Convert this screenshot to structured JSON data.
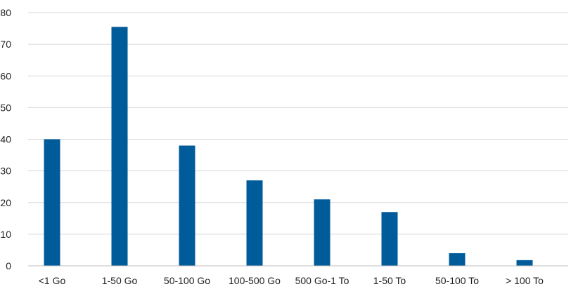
{
  "chart_data": {
    "type": "bar",
    "categories": [
      "<1 Go",
      "1-50 Go",
      "50-100 Go",
      "100-500 Go",
      "500 Go-1 To",
      "1-50 To",
      "50-100 To",
      "> 100 To"
    ],
    "values": [
      40,
      75.5,
      38,
      27,
      21,
      17,
      4,
      1.8
    ],
    "ylim": [
      0,
      80
    ],
    "yticks": [
      0,
      10,
      20,
      30,
      40,
      50,
      60,
      70,
      80
    ],
    "grid": true,
    "legend": "none",
    "bar_color": "#005b9a",
    "grid_color": "#d9d9d9",
    "axis_color": "#bfbfbf"
  }
}
